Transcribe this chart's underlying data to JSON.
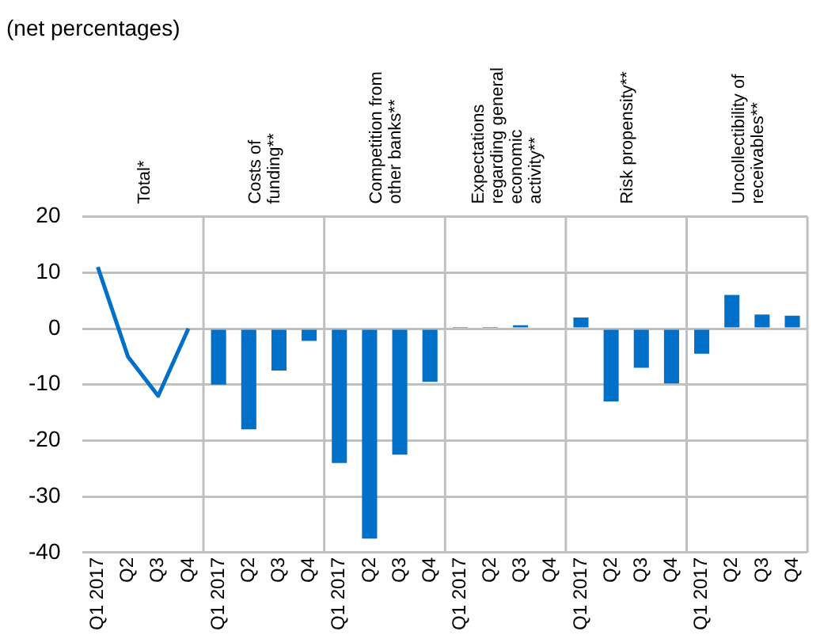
{
  "chart_data": {
    "type": "bar",
    "subtitle": "(net percentages)",
    "categories": [
      "Q1 2017",
      "Q2",
      "Q3",
      "Q4",
      "Q1 2017",
      "Q2",
      "Q3",
      "Q4",
      "Q1 2017",
      "Q2",
      "Q3",
      "Q4",
      "Q1 2017",
      "Q2",
      "Q3",
      "Q4",
      "Q1 2017",
      "Q2",
      "Q3",
      "Q4",
      "Q1 2017",
      "Q2",
      "Q3",
      "Q4"
    ],
    "series": [
      {
        "type": "line",
        "color": "#0070c8",
        "values": [
          11,
          -5,
          -12,
          0,
          null,
          null,
          null,
          null,
          null,
          null,
          null,
          null,
          null,
          null,
          null,
          null,
          null,
          null,
          null,
          null,
          null,
          null,
          null,
          null
        ]
      },
      {
        "color": "#0070c8",
        "values": [
          null,
          null,
          null,
          null,
          -10,
          -18,
          -7.5,
          -2.2,
          -24,
          -37.5,
          -22.5,
          -9.5,
          0.3,
          0.3,
          0.6,
          0,
          2,
          -13,
          -7,
          -9.8,
          -4.5,
          6,
          2.5,
          2.3
        ]
      }
    ],
    "annotations": [
      "Total*",
      "Costs of funding**",
      "Competition from other banks**",
      "Expectations regarding general economic activity**",
      "Risk propensity**",
      "Uncollectibility of receivables**"
    ],
    "ylim": [
      -40,
      20
    ],
    "yticks": [
      -40,
      -30,
      -20,
      -10,
      0,
      10,
      20
    ],
    "grid": "y",
    "legend": false,
    "marker": "none",
    "line_style": "solid"
  }
}
